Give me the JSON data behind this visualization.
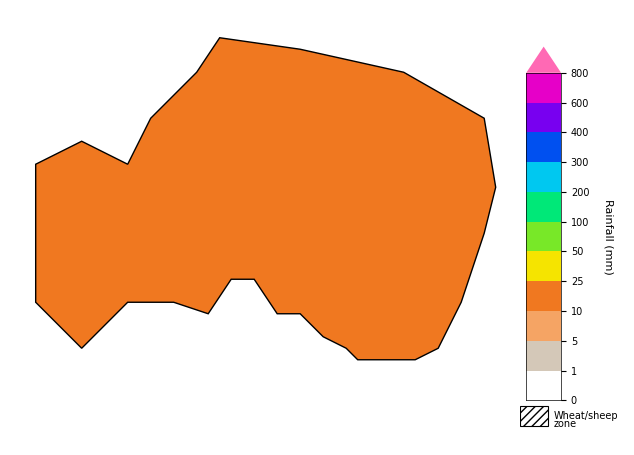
{
  "title": "",
  "colorbar_label": "Rainfall (mm)",
  "colorbar_ticks": [
    0,
    1,
    5,
    10,
    25,
    50,
    100,
    200,
    300,
    400,
    600,
    800
  ],
  "colorbar_tick_labels": [
    "0",
    "1",
    "5",
    "10",
    "25",
    "50",
    "100",
    "200",
    "300",
    "400",
    "600",
    "800"
  ],
  "colorbar_colors": [
    "#ffffff",
    "#d4c8b8",
    "#f5a464",
    "#f07820",
    "#f5e400",
    "#78e828",
    "#00e878",
    "#00c8f0",
    "#0050f0",
    "#7800f0",
    "#e600c8",
    "#ff69b4"
  ],
  "wheat_sheep_hatch": "////",
  "wheat_sheep_color": "#ffffff",
  "wheat_sheep_edgecolor": "#000000",
  "background_color": "#ffffff",
  "figsize": [
    6.34,
    4.55
  ],
  "dpi": 100,
  "colorbar_arrow_color": "#ff69b4",
  "map_bg": "#ffffff"
}
